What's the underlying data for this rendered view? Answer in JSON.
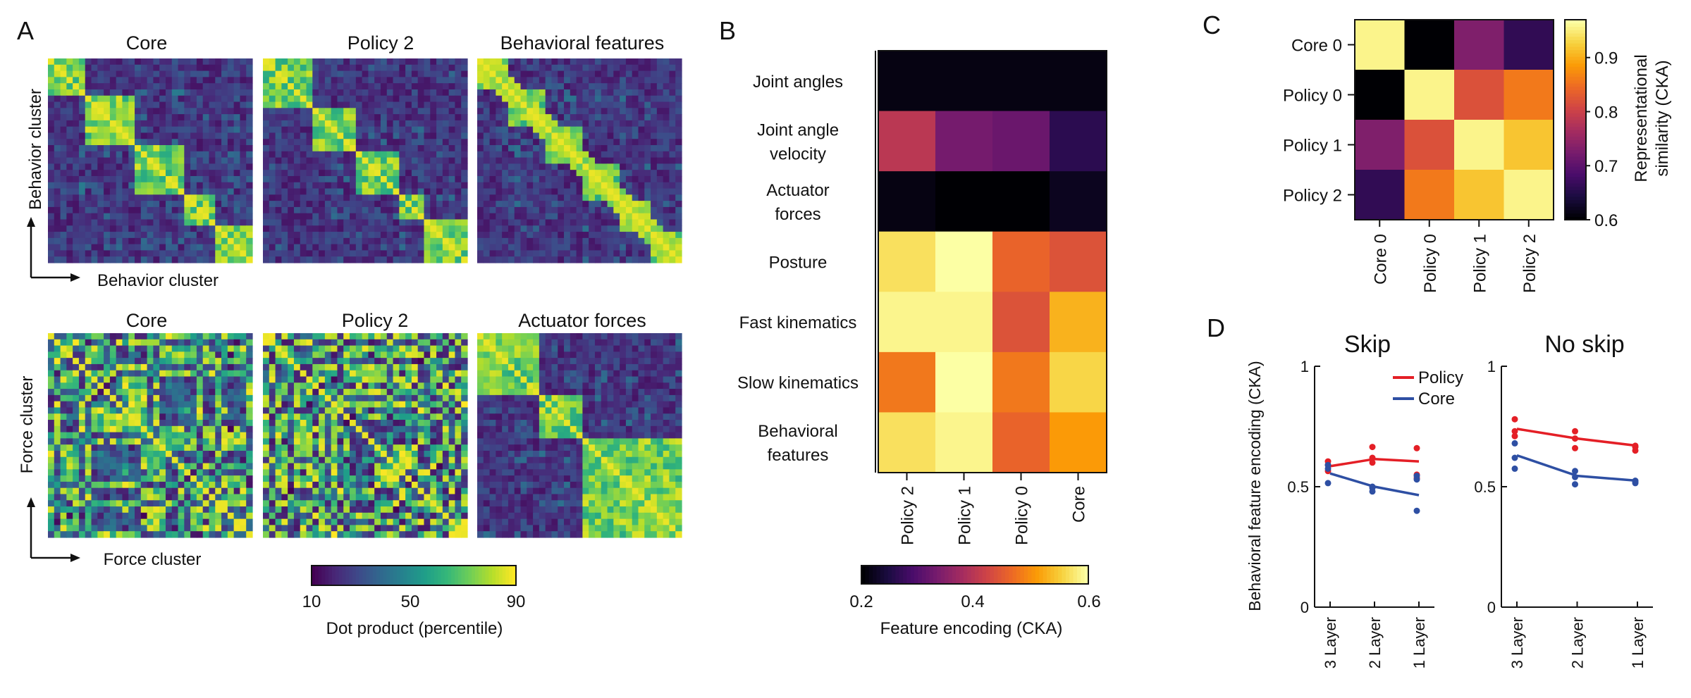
{
  "panel_letters": [
    "A",
    "B",
    "C",
    "D"
  ],
  "colors": {
    "viridis": [
      "#440154",
      "#482878",
      "#3e4989",
      "#31688e",
      "#26828e",
      "#1f9e89",
      "#35b779",
      "#6ece58",
      "#b5de2b",
      "#fde725"
    ],
    "inferno": [
      "#000004",
      "#1b0c41",
      "#4a0c6b",
      "#781c6d",
      "#a52c60",
      "#cf4446",
      "#ed6925",
      "#fb9b06",
      "#f7d13d",
      "#fcffa4"
    ],
    "policy": "#e41f26",
    "core": "#2e4fa3"
  },
  "chart_data": [
    {
      "id": "A",
      "type": "heatmap",
      "description_labels": {
        "row1_ylabel": "Behavior cluster",
        "row1_xlabel": "Behavior cluster",
        "row2_ylabel": "Force cluster",
        "row2_xlabel": "Force cluster"
      },
      "heatmaps": [
        {
          "title": "Core",
          "row": 1,
          "seed": 11,
          "blocks": [
            0,
            6,
            14,
            22,
            27,
            33
          ]
        },
        {
          "title": "Policy 2",
          "row": 1,
          "seed": 23,
          "blocks": [
            0,
            8,
            15,
            22,
            26,
            33
          ]
        },
        {
          "title": "Behavioral features",
          "row": 1,
          "seed": 37,
          "blocks": [
            0,
            5,
            11,
            17,
            23,
            28,
            33
          ]
        },
        {
          "title": "Core",
          "row": 2,
          "seed": 51,
          "blocks": []
        },
        {
          "title": "Policy 2",
          "row": 2,
          "seed": 67,
          "blocks": []
        },
        {
          "title": "Actuator forces",
          "row": 2,
          "seed": 83,
          "blocks": [
            0,
            10,
            17,
            33
          ]
        }
      ],
      "colorbar": {
        "label": "Dot product (percentile)",
        "ticks": [
          "10",
          "50",
          "90"
        ],
        "range": [
          10,
          90
        ]
      }
    },
    {
      "id": "B",
      "type": "heatmap",
      "rows": [
        "Joint angles",
        "Joint angle velocity",
        "Actuator forces",
        "Posture",
        "Fast kinematics",
        "Slow kinematics",
        "Behavioral features"
      ],
      "row_label_lines": [
        [
          "Joint angles"
        ],
        [
          "Joint angle",
          "velocity"
        ],
        [
          "Actuator",
          "forces"
        ],
        [
          "Posture"
        ],
        [
          "Fast kinematics"
        ],
        [
          "Slow kinematics"
        ],
        [
          "Behavioral",
          "features"
        ]
      ],
      "columns": [
        "Policy 2",
        "Policy 1",
        "Policy 0",
        "Core"
      ],
      "values": [
        [
          0.21,
          0.21,
          0.21,
          0.21
        ],
        [
          0.4,
          0.33,
          0.32,
          0.26
        ],
        [
          0.21,
          0.2,
          0.2,
          0.22
        ],
        [
          0.57,
          0.6,
          0.46,
          0.44
        ],
        [
          0.59,
          0.59,
          0.44,
          0.53
        ],
        [
          0.48,
          0.6,
          0.48,
          0.56
        ],
        [
          0.57,
          0.59,
          0.46,
          0.51
        ]
      ],
      "colorbar": {
        "label": "Feature encoding (CKA)",
        "ticks": [
          "0.2",
          "0.4",
          "0.6"
        ],
        "range": [
          0.2,
          0.6
        ]
      }
    },
    {
      "id": "C",
      "type": "heatmap",
      "labels": [
        "Core 0",
        "Policy 0",
        "Policy 1",
        "Policy 2"
      ],
      "values": [
        [
          0.96,
          0.6,
          0.73,
          0.66
        ],
        [
          0.6,
          0.96,
          0.82,
          0.86
        ],
        [
          0.73,
          0.82,
          0.96,
          0.92
        ],
        [
          0.66,
          0.86,
          0.92,
          0.96
        ]
      ],
      "colorbar": {
        "label_lines": [
          "Representational",
          "similarity (CKA)"
        ],
        "ticks": [
          "0.6",
          "0.7",
          "0.8",
          "0.9"
        ],
        "range": [
          0.6,
          0.97
        ]
      }
    },
    {
      "id": "D",
      "type": "line",
      "ylabel": "Behavioral feature encoding (CKA)",
      "ylim": [
        0,
        1
      ],
      "yticks": [
        "0",
        "0.5",
        "1"
      ],
      "categories": [
        "3 Layer",
        "2 Layer",
        "1 Layer"
      ],
      "legend": [
        "Policy",
        "Core"
      ],
      "subplots": [
        {
          "title": "Skip",
          "series": [
            {
              "name": "Policy",
              "mean": [
                0.585,
                0.615,
                0.605
              ],
              "points": [
                [
                  0.565,
                  0.59,
                  0.605
                ],
                [
                  0.6,
                  0.665,
                  0.62
                ],
                [
                  0.535,
                  0.55,
                  0.66
                ]
              ]
            },
            {
              "name": "Core",
              "mean": [
                0.555,
                0.5,
                0.465
              ],
              "points": [
                [
                  0.515,
                  0.575,
                  0.59
                ],
                [
                  0.48,
                  0.5,
                  0.495
                ],
                [
                  0.4,
                  0.53,
                  0.545
                ]
              ]
            }
          ]
        },
        {
          "title": "No skip",
          "series": [
            {
              "name": "Policy",
              "mean": [
                0.74,
                0.7,
                0.67
              ],
              "points": [
                [
                  0.71,
                  0.78,
                  0.73
                ],
                [
                  0.66,
                  0.7,
                  0.73
                ],
                [
                  0.65,
                  0.665,
                  0.67
                ]
              ]
            },
            {
              "name": "Core",
              "mean": [
                0.63,
                0.545,
                0.525
              ],
              "points": [
                [
                  0.575,
                  0.68,
                  0.62
                ],
                [
                  0.51,
                  0.565,
                  0.54
                ],
                [
                  0.515,
                  0.525,
                  0.52
                ]
              ]
            }
          ]
        }
      ]
    }
  ]
}
